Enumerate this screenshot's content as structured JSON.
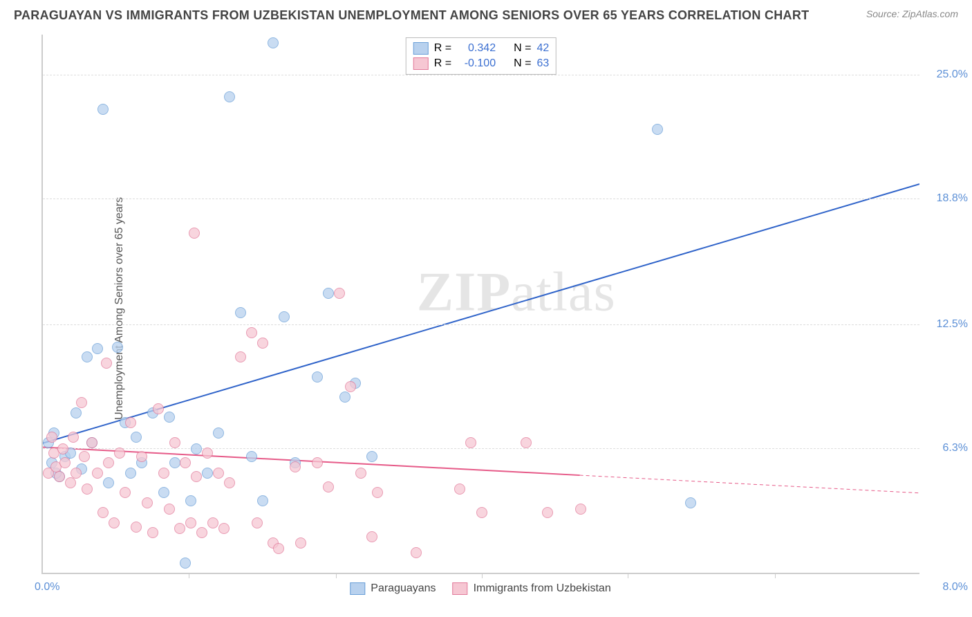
{
  "header": {
    "title": "PARAGUAYAN VS IMMIGRANTS FROM UZBEKISTAN UNEMPLOYMENT AMONG SENIORS OVER 65 YEARS CORRELATION CHART",
    "source": "Source: ZipAtlas.com"
  },
  "chart": {
    "type": "scatter",
    "watermark": {
      "bold": "ZIP",
      "rest": "atlas"
    },
    "ylabel": "Unemployment Among Seniors over 65 years",
    "xlim": [
      0,
      8
    ],
    "ylim": [
      0,
      27
    ],
    "x_axis_labels": {
      "left": "0.0%",
      "right": "8.0%"
    },
    "y_ticks": [
      {
        "value": 6.3,
        "label": "6.3%"
      },
      {
        "value": 12.5,
        "label": "12.5%"
      },
      {
        "value": 18.8,
        "label": "18.8%"
      },
      {
        "value": 25.0,
        "label": "25.0%"
      }
    ],
    "x_ticks": [
      1.33,
      2.67,
      4.0,
      5.33,
      6.67
    ],
    "grid_color": "#dddddd",
    "axis_color": "#cccccc",
    "background_color": "#ffffff",
    "series": [
      {
        "key": "paraguayans",
        "label": "Paraguayans",
        "marker_fill": "#b8d1ee",
        "marker_stroke": "#6a9fd8",
        "marker_opacity": 0.75,
        "trend": {
          "color": "#2f63c9",
          "width": 2,
          "y_at_x0": 6.5,
          "y_at_xmax": 19.5,
          "solid_until_x": 8.0
        },
        "stats": {
          "R": "0.342",
          "N": "42"
        },
        "points": [
          {
            "x": 0.05,
            "y": 6.5
          },
          {
            "x": 0.08,
            "y": 5.5
          },
          {
            "x": 0.1,
            "y": 7.0
          },
          {
            "x": 0.15,
            "y": 4.8
          },
          {
            "x": 0.2,
            "y": 5.8
          },
          {
            "x": 0.25,
            "y": 6.0
          },
          {
            "x": 0.3,
            "y": 8.0
          },
          {
            "x": 0.35,
            "y": 5.2
          },
          {
            "x": 0.4,
            "y": 10.8
          },
          {
            "x": 0.45,
            "y": 6.5
          },
          {
            "x": 0.5,
            "y": 11.2
          },
          {
            "x": 0.55,
            "y": 23.2
          },
          {
            "x": 0.6,
            "y": 4.5
          },
          {
            "x": 0.68,
            "y": 11.3
          },
          {
            "x": 0.75,
            "y": 7.5
          },
          {
            "x": 0.8,
            "y": 5.0
          },
          {
            "x": 0.85,
            "y": 6.8
          },
          {
            "x": 0.9,
            "y": 5.5
          },
          {
            "x": 1.0,
            "y": 8.0
          },
          {
            "x": 1.1,
            "y": 4.0
          },
          {
            "x": 1.15,
            "y": 7.8
          },
          {
            "x": 1.2,
            "y": 5.5
          },
          {
            "x": 1.3,
            "y": 0.5
          },
          {
            "x": 1.35,
            "y": 3.6
          },
          {
            "x": 1.4,
            "y": 6.2
          },
          {
            "x": 1.5,
            "y": 5.0
          },
          {
            "x": 1.6,
            "y": 7.0
          },
          {
            "x": 1.7,
            "y": 23.8
          },
          {
            "x": 1.8,
            "y": 13.0
          },
          {
            "x": 1.9,
            "y": 5.8
          },
          {
            "x": 2.0,
            "y": 3.6
          },
          {
            "x": 2.1,
            "y": 26.5
          },
          {
            "x": 2.2,
            "y": 12.8
          },
          {
            "x": 2.3,
            "y": 5.5
          },
          {
            "x": 2.5,
            "y": 9.8
          },
          {
            "x": 2.6,
            "y": 14.0
          },
          {
            "x": 2.75,
            "y": 8.8
          },
          {
            "x": 2.85,
            "y": 9.5
          },
          {
            "x": 3.0,
            "y": 5.8
          },
          {
            "x": 5.6,
            "y": 22.2
          },
          {
            "x": 5.9,
            "y": 3.5
          },
          {
            "x": 0.12,
            "y": 5.0
          }
        ]
      },
      {
        "key": "uzbekistan",
        "label": "Immigrants from Uzbekistan",
        "marker_fill": "#f6c7d3",
        "marker_stroke": "#e27a9a",
        "marker_opacity": 0.75,
        "trend": {
          "color": "#e65a88",
          "width": 2,
          "y_at_x0": 6.3,
          "y_at_xmax": 4.0,
          "solid_until_x": 4.9
        },
        "stats": {
          "R": "-0.100",
          "N": "63"
        },
        "points": [
          {
            "x": 0.05,
            "y": 5.0
          },
          {
            "x": 0.1,
            "y": 6.0
          },
          {
            "x": 0.12,
            "y": 5.3
          },
          {
            "x": 0.15,
            "y": 4.8
          },
          {
            "x": 0.18,
            "y": 6.2
          },
          {
            "x": 0.2,
            "y": 5.5
          },
          {
            "x": 0.25,
            "y": 4.5
          },
          {
            "x": 0.28,
            "y": 6.8
          },
          {
            "x": 0.3,
            "y": 5.0
          },
          {
            "x": 0.35,
            "y": 8.5
          },
          {
            "x": 0.38,
            "y": 5.8
          },
          {
            "x": 0.4,
            "y": 4.2
          },
          {
            "x": 0.45,
            "y": 6.5
          },
          {
            "x": 0.5,
            "y": 5.0
          },
          {
            "x": 0.55,
            "y": 3.0
          },
          {
            "x": 0.58,
            "y": 10.5
          },
          {
            "x": 0.6,
            "y": 5.5
          },
          {
            "x": 0.65,
            "y": 2.5
          },
          {
            "x": 0.7,
            "y": 6.0
          },
          {
            "x": 0.75,
            "y": 4.0
          },
          {
            "x": 0.8,
            "y": 7.5
          },
          {
            "x": 0.85,
            "y": 2.3
          },
          {
            "x": 0.9,
            "y": 5.8
          },
          {
            "x": 0.95,
            "y": 3.5
          },
          {
            "x": 1.0,
            "y": 2.0
          },
          {
            "x": 1.05,
            "y": 8.2
          },
          {
            "x": 1.1,
            "y": 5.0
          },
          {
            "x": 1.15,
            "y": 3.2
          },
          {
            "x": 1.2,
            "y": 6.5
          },
          {
            "x": 1.25,
            "y": 2.2
          },
          {
            "x": 1.3,
            "y": 5.5
          },
          {
            "x": 1.35,
            "y": 2.5
          },
          {
            "x": 1.38,
            "y": 17.0
          },
          {
            "x": 1.4,
            "y": 4.8
          },
          {
            "x": 1.45,
            "y": 2.0
          },
          {
            "x": 1.5,
            "y": 6.0
          },
          {
            "x": 1.55,
            "y": 2.5
          },
          {
            "x": 1.6,
            "y": 5.0
          },
          {
            "x": 1.65,
            "y": 2.2
          },
          {
            "x": 1.7,
            "y": 4.5
          },
          {
            "x": 1.8,
            "y": 10.8
          },
          {
            "x": 1.9,
            "y": 12.0
          },
          {
            "x": 1.95,
            "y": 2.5
          },
          {
            "x": 2.0,
            "y": 11.5
          },
          {
            "x": 2.1,
            "y": 1.5
          },
          {
            "x": 2.15,
            "y": 1.2
          },
          {
            "x": 2.3,
            "y": 5.3
          },
          {
            "x": 2.35,
            "y": 1.5
          },
          {
            "x": 2.5,
            "y": 5.5
          },
          {
            "x": 2.6,
            "y": 4.3
          },
          {
            "x": 2.7,
            "y": 14.0
          },
          {
            "x": 2.8,
            "y": 9.3
          },
          {
            "x": 2.9,
            "y": 5.0
          },
          {
            "x": 3.0,
            "y": 1.8
          },
          {
            "x": 3.05,
            "y": 4.0
          },
          {
            "x": 3.4,
            "y": 1.0
          },
          {
            "x": 3.8,
            "y": 4.2
          },
          {
            "x": 3.9,
            "y": 6.5
          },
          {
            "x": 4.0,
            "y": 3.0
          },
          {
            "x": 4.4,
            "y": 6.5
          },
          {
            "x": 4.6,
            "y": 3.0
          },
          {
            "x": 4.9,
            "y": 3.2
          },
          {
            "x": 0.08,
            "y": 6.8
          }
        ]
      }
    ],
    "legend_top": {
      "r_label": "R =",
      "n_label": "N ="
    }
  }
}
